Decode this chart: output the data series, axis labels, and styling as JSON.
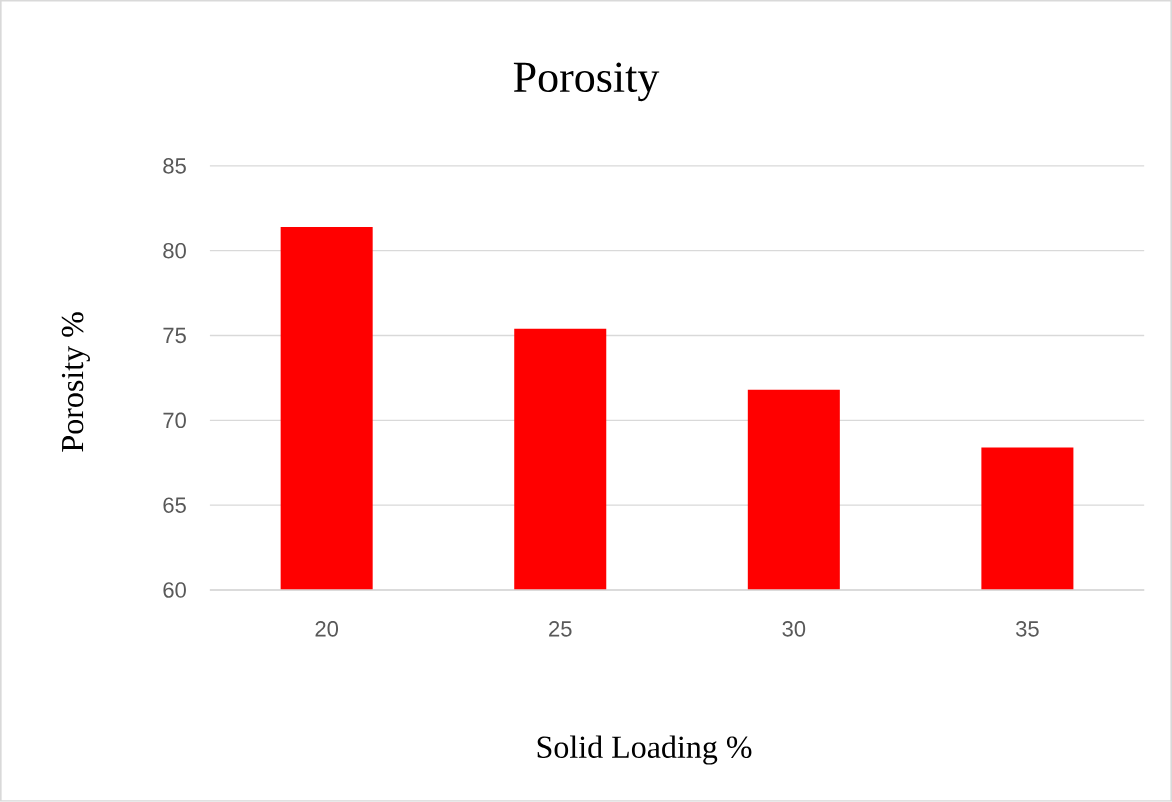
{
  "chart_data": {
    "type": "bar",
    "title": "Porosity",
    "xlabel": "Solid Loading %",
    "ylabel": "Porosity %",
    "categories": [
      "20",
      "25",
      "30",
      "35"
    ],
    "values": [
      81.4,
      75.4,
      71.8,
      68.4
    ],
    "color": "#ff0000",
    "ylim": [
      60,
      85
    ],
    "yticks": [
      60,
      65,
      70,
      75,
      80,
      85
    ],
    "grid": "y"
  }
}
